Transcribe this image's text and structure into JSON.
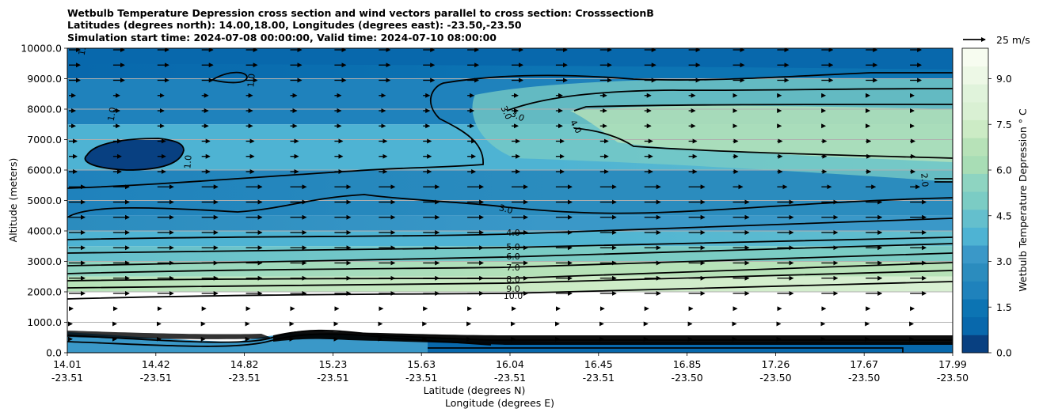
{
  "chart_data": {
    "type": "heatmap",
    "title_lines": [
      "Wetbulb Temperature Depression cross section and wind vectors parallel to cross section: CrosssectionB",
      "Latitudes (degrees north): 14.00,18.00, Longitudes (degrees east): -23.50,-23.50",
      "Simulation start time: 2024-07-08 00:00:00, Valid time: 2024-07-10 08:00:00"
    ],
    "ylabel": "Altitude (meters)",
    "xlabel_lines": [
      "Latitude (degrees N)",
      "Longitude (degrees E)"
    ],
    "ylim": [
      0,
      10000
    ],
    "y_ticks": [
      "0.0",
      "1000.0",
      "2000.0",
      "3000.0",
      "4000.0",
      "5000.0",
      "6000.0",
      "7000.0",
      "8000.0",
      "9000.0",
      "10000.0"
    ],
    "x_ticks": [
      {
        "lat": "14.01",
        "lon": "-23.51"
      },
      {
        "lat": "14.42",
        "lon": "-23.51"
      },
      {
        "lat": "14.82",
        "lon": "-23.51"
      },
      {
        "lat": "15.23",
        "lon": "-23.51"
      },
      {
        "lat": "15.63",
        "lon": "-23.51"
      },
      {
        "lat": "16.04",
        "lon": "-23.51"
      },
      {
        "lat": "16.45",
        "lon": "-23.51"
      },
      {
        "lat": "16.85",
        "lon": "-23.50"
      },
      {
        "lat": "17.26",
        "lon": "-23.50"
      },
      {
        "lat": "17.67",
        "lon": "-23.50"
      },
      {
        "lat": "17.99",
        "lon": "-23.50"
      }
    ],
    "grid": "horizontal",
    "colorbar": {
      "label": "Wetbulb Temperature Depression $^\\circ$C",
      "label_display": "Wetbulb Temperature Depression ° C",
      "range": [
        0,
        10
      ],
      "ticks": [
        "0.0",
        "1.5",
        "3.0",
        "4.5",
        "6.0",
        "7.5",
        "9.0"
      ],
      "colors": [
        "#084081",
        "#0868ac",
        "#0c74b3",
        "#1f82bc",
        "#2b8cbe",
        "#3a98c8",
        "#4eb3d3",
        "#64bfcd",
        "#7bccc4",
        "#8ed4c1",
        "#a8ddb5",
        "#b7e2b8",
        "#ccebc5",
        "#d9f0d3",
        "#e0f3db",
        "#edf8e6",
        "#f7fcf0"
      ]
    },
    "contour_labels": [
      "1.0",
      "2.0",
      "3.0",
      "4.0",
      "5.0",
      "6.0",
      "7.0",
      "8.0",
      "9.0",
      "10.0"
    ],
    "wind_key": {
      "value": 25,
      "label": "25 m/s"
    },
    "levels": [
      {
        "altitude": 10000,
        "value": 1.3
      },
      {
        "altitude": 9000,
        "value": 2.0
      },
      {
        "altitude": 7500,
        "value": 4.0
      },
      {
        "altitude": 6000,
        "value": 2.5
      },
      {
        "altitude": 5000,
        "value": 2.5
      },
      {
        "altitude": 4500,
        "value": 3.2
      },
      {
        "altitude": 4000,
        "value": 4.0
      },
      {
        "altitude": 3500,
        "value": 5.0
      },
      {
        "altitude": 3000,
        "value": 6.5
      },
      {
        "altitude": 2500,
        "value": 7.5
      },
      {
        "altitude": 2000,
        "value": 9.0
      }
    ]
  }
}
